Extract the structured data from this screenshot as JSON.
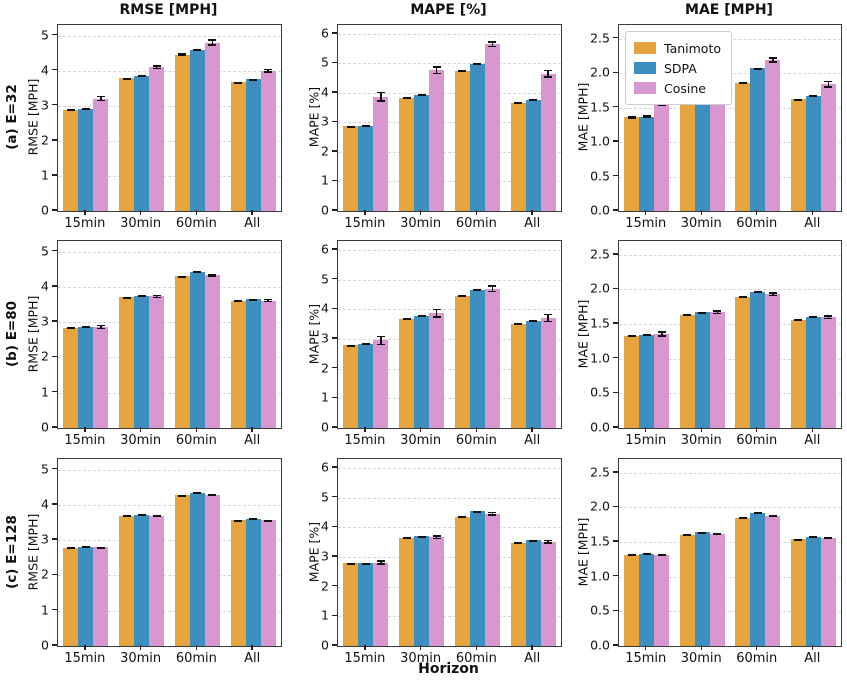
{
  "figure": {
    "column_titles": [
      "RMSE [MPH]",
      "MAPE [%]",
      "MAE [MPH]"
    ],
    "row_labels": [
      "(a) E=32",
      "(b) E=80",
      "(c) E=128"
    ],
    "xlabel": "Horizon",
    "categories": [
      "15min",
      "30min",
      "60min",
      "All"
    ],
    "legend": {
      "position": "upper-left of top-right subplot",
      "entries": [
        {
          "label": "Tanimoto",
          "color": "#E5A43D"
        },
        {
          "label": "SDPA",
          "color": "#3D8FBF"
        },
        {
          "label": "Cosine",
          "color": "#D897CE"
        }
      ]
    },
    "colors": {
      "tanimoto": "#E5A43D",
      "sdpa": "#3D8FBF",
      "cosine": "#D897CE"
    },
    "grid": "horizontal dashed lines at each y tick"
  },
  "chart_data": [
    {
      "type": "bar",
      "row": "(a) E=32",
      "title": "RMSE [MPH]",
      "ylabel": "RMSE [MPH]",
      "categories": [
        "15min",
        "30min",
        "60min",
        "All"
      ],
      "ylim": [
        0,
        5.3
      ],
      "yticks": [
        0,
        1,
        2,
        3,
        4,
        5
      ],
      "ytick_labels": [
        "0",
        "1",
        "2",
        "3",
        "4",
        "5"
      ],
      "series": [
        {
          "name": "Tanimoto",
          "values": [
            2.88,
            3.78,
            4.45,
            3.67
          ],
          "errors": [
            0.02,
            0.02,
            0.04,
            0.02
          ]
        },
        {
          "name": "SDPA",
          "values": [
            2.9,
            3.85,
            4.6,
            3.75
          ],
          "errors": [
            0.03,
            0.02,
            0.03,
            0.02
          ]
        },
        {
          "name": "Cosine",
          "values": [
            3.2,
            4.1,
            4.8,
            4.0
          ],
          "errors": [
            0.08,
            0.06,
            0.09,
            0.06
          ]
        }
      ]
    },
    {
      "type": "bar",
      "row": "(a) E=32",
      "title": "MAPE [%]",
      "ylabel": "MAPE [%]",
      "categories": [
        "15min",
        "30min",
        "60min",
        "All"
      ],
      "ylim": [
        0,
        6.3
      ],
      "yticks": [
        0,
        1,
        2,
        3,
        4,
        5,
        6
      ],
      "ytick_labels": [
        "0",
        "1",
        "2",
        "3",
        "4",
        "5",
        "6"
      ],
      "series": [
        {
          "name": "Tanimoto",
          "values": [
            2.87,
            3.83,
            4.74,
            3.67
          ],
          "errors": [
            0.02,
            0.03,
            0.03,
            0.02
          ]
        },
        {
          "name": "SDPA",
          "values": [
            2.88,
            3.93,
            4.97,
            3.77
          ],
          "errors": [
            0.03,
            0.03,
            0.03,
            0.02
          ]
        },
        {
          "name": "Cosine",
          "values": [
            3.87,
            4.77,
            5.65,
            4.65
          ],
          "errors": [
            0.17,
            0.13,
            0.1,
            0.13
          ]
        }
      ]
    },
    {
      "type": "bar",
      "row": "(a) E=32",
      "title": "MAE [MPH]",
      "ylabel": "MAE [MPH]",
      "categories": [
        "15min",
        "30min",
        "60min",
        "All"
      ],
      "ylim": [
        0,
        2.7
      ],
      "yticks": [
        0,
        0.5,
        1.0,
        1.5,
        2.0,
        2.5
      ],
      "ytick_labels": [
        "0.0",
        "0.5",
        "1.0",
        "1.5",
        "2.0",
        "2.5"
      ],
      "series": [
        {
          "name": "Tanimoto",
          "values": [
            1.36,
            1.69,
            1.86,
            1.62
          ],
          "errors": [
            0.02,
            0.01,
            0.01,
            0.01
          ]
        },
        {
          "name": "SDPA",
          "values": [
            1.37,
            1.73,
            2.07,
            1.67
          ],
          "errors": [
            0.02,
            0.01,
            0.01,
            0.01
          ]
        },
        {
          "name": "Cosine",
          "values": [
            1.58,
            1.89,
            2.19,
            1.84
          ],
          "errors": [
            0.06,
            0.03,
            0.04,
            0.05
          ]
        }
      ]
    },
    {
      "type": "bar",
      "row": "(b) E=80",
      "title": "RMSE [MPH]",
      "ylabel": "RMSE [MPH]",
      "categories": [
        "15min",
        "30min",
        "60min",
        "All"
      ],
      "ylim": [
        0,
        5.3
      ],
      "yticks": [
        0,
        1,
        2,
        3,
        4,
        5
      ],
      "ytick_labels": [
        "0",
        "1",
        "2",
        "3",
        "4",
        "5"
      ],
      "series": [
        {
          "name": "Tanimoto",
          "values": [
            2.83,
            3.7,
            4.3,
            3.61
          ],
          "errors": [
            0.02,
            0.02,
            0.02,
            0.02
          ]
        },
        {
          "name": "SDPA",
          "values": [
            2.86,
            3.75,
            4.43,
            3.65
          ],
          "errors": [
            0.02,
            0.02,
            0.02,
            0.02
          ]
        },
        {
          "name": "Cosine",
          "values": [
            2.86,
            3.73,
            4.33,
            3.61
          ],
          "errors": [
            0.06,
            0.05,
            0.04,
            0.05
          ]
        }
      ]
    },
    {
      "type": "bar",
      "row": "(b) E=80",
      "title": "MAPE [%]",
      "ylabel": "MAPE [%]",
      "categories": [
        "15min",
        "30min",
        "60min",
        "All"
      ],
      "ylim": [
        0,
        6.3
      ],
      "yticks": [
        0,
        1,
        2,
        3,
        4,
        5,
        6
      ],
      "ytick_labels": [
        "0",
        "1",
        "2",
        "3",
        "4",
        "5",
        "6"
      ],
      "series": [
        {
          "name": "Tanimoto",
          "values": [
            2.78,
            3.67,
            4.45,
            3.52
          ],
          "errors": [
            0.03,
            0.03,
            0.03,
            0.02
          ]
        },
        {
          "name": "SDPA",
          "values": [
            2.82,
            3.78,
            4.66,
            3.62
          ],
          "errors": [
            0.03,
            0.03,
            0.02,
            0.02
          ]
        },
        {
          "name": "Cosine",
          "values": [
            2.95,
            3.86,
            4.69,
            3.71
          ],
          "errors": [
            0.16,
            0.15,
            0.12,
            0.14
          ]
        }
      ]
    },
    {
      "type": "bar",
      "row": "(b) E=80",
      "title": "MAE [MPH]",
      "ylabel": "MAE [MPH]",
      "categories": [
        "15min",
        "30min",
        "60min",
        "All"
      ],
      "ylim": [
        0,
        2.7
      ],
      "yticks": [
        0,
        0.5,
        1.0,
        1.5,
        2.0,
        2.5
      ],
      "ytick_labels": [
        "0.0",
        "0.5",
        "1.0",
        "1.5",
        "2.0",
        "2.5"
      ],
      "series": [
        {
          "name": "Tanimoto",
          "values": [
            1.33,
            1.63,
            1.89,
            1.56
          ],
          "errors": [
            0.01,
            0.01,
            0.01,
            0.01
          ]
        },
        {
          "name": "SDPA",
          "values": [
            1.35,
            1.67,
            1.97,
            1.61
          ],
          "errors": [
            0.01,
            0.01,
            0.01,
            0.01
          ]
        },
        {
          "name": "Cosine",
          "values": [
            1.36,
            1.67,
            1.93,
            1.6
          ],
          "errors": [
            0.04,
            0.03,
            0.03,
            0.03
          ]
        }
      ]
    },
    {
      "type": "bar",
      "row": "(c) E=128",
      "title": "RMSE [MPH]",
      "ylabel": "RMSE [MPH]",
      "categories": [
        "15min",
        "30min",
        "60min",
        "All"
      ],
      "ylim": [
        0,
        5.3
      ],
      "yticks": [
        0,
        1,
        2,
        3,
        4,
        5
      ],
      "ytick_labels": [
        "0",
        "1",
        "2",
        "3",
        "4",
        "5"
      ],
      "series": [
        {
          "name": "Tanimoto",
          "values": [
            2.79,
            3.68,
            4.27,
            3.56
          ],
          "errors": [
            0.02,
            0.02,
            0.02,
            0.02
          ]
        },
        {
          "name": "SDPA",
          "values": [
            2.81,
            3.71,
            4.34,
            3.6
          ],
          "errors": [
            0.02,
            0.02,
            0.02,
            0.02
          ]
        },
        {
          "name": "Cosine",
          "values": [
            2.8,
            3.68,
            4.28,
            3.56
          ],
          "errors": [
            0.02,
            0.02,
            0.02,
            0.02
          ]
        }
      ]
    },
    {
      "type": "bar",
      "row": "(c) E=128",
      "title": "MAPE [%]",
      "ylabel": "MAPE [%]",
      "categories": [
        "15min",
        "30min",
        "60min",
        "All"
      ],
      "ylim": [
        0,
        6.3
      ],
      "yticks": [
        0,
        1,
        2,
        3,
        4,
        5,
        6
      ],
      "ytick_labels": [
        "0",
        "1",
        "2",
        "3",
        "4",
        "5",
        "6"
      ],
      "series": [
        {
          "name": "Tanimoto",
          "values": [
            2.78,
            3.63,
            4.36,
            3.47
          ],
          "errors": [
            0.02,
            0.03,
            0.03,
            0.02
          ]
        },
        {
          "name": "SDPA",
          "values": [
            2.79,
            3.7,
            4.54,
            3.56
          ],
          "errors": [
            0.02,
            0.02,
            0.02,
            0.02
          ]
        },
        {
          "name": "Cosine",
          "values": [
            2.81,
            3.66,
            4.46,
            3.51
          ],
          "errors": [
            0.08,
            0.07,
            0.07,
            0.07
          ]
        }
      ]
    },
    {
      "type": "bar",
      "row": "(c) E=128",
      "title": "MAE [MPH]",
      "ylabel": "MAE [MPH]",
      "categories": [
        "15min",
        "30min",
        "60min",
        "All"
      ],
      "ylim": [
        0,
        2.7
      ],
      "yticks": [
        0,
        0.5,
        1.0,
        1.5,
        2.0,
        2.5
      ],
      "ytick_labels": [
        "0.0",
        "0.5",
        "1.0",
        "1.5",
        "2.0",
        "2.5"
      ],
      "series": [
        {
          "name": "Tanimoto",
          "values": [
            1.32,
            1.61,
            1.85,
            1.54
          ],
          "errors": [
            0.01,
            0.01,
            0.01,
            0.01
          ]
        },
        {
          "name": "SDPA",
          "values": [
            1.33,
            1.64,
            1.92,
            1.58
          ],
          "errors": [
            0.01,
            0.01,
            0.01,
            0.01
          ]
        },
        {
          "name": "Cosine",
          "values": [
            1.32,
            1.62,
            1.88,
            1.56
          ],
          "errors": [
            0.01,
            0.01,
            0.01,
            0.01
          ]
        }
      ]
    }
  ]
}
